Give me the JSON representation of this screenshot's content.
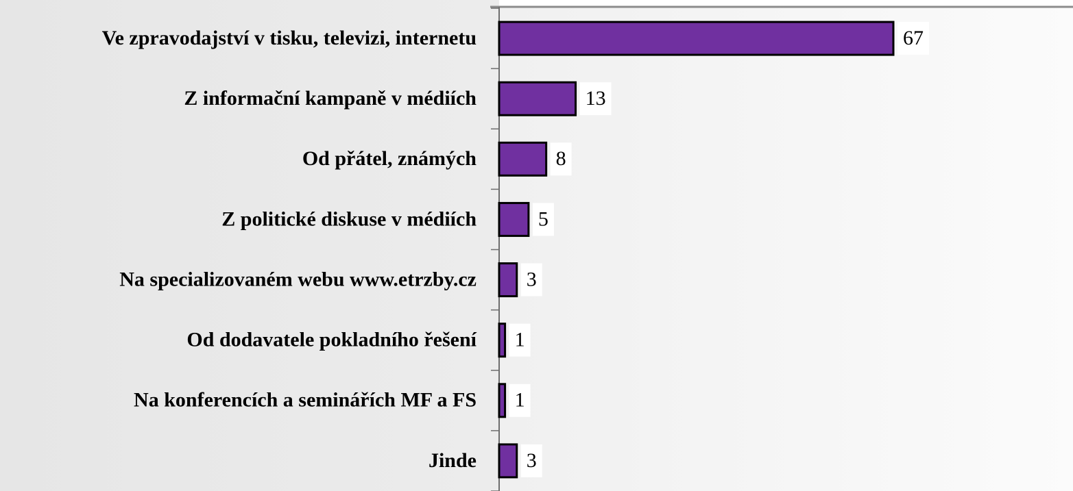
{
  "chart_data": {
    "type": "bar",
    "orientation": "horizontal",
    "categories": [
      "Ve zpravodajství v tisku, televizi, internetu",
      "Z informační kampaně v médiích",
      "Od přátel, známých",
      "Z politické diskuse v médiích",
      "Na specializovaném webu www.etrzby.cz",
      "Od dodavatele pokladního řešení",
      "Na konferencích a seminářích MF a FS",
      "Jinde"
    ],
    "values": [
      67,
      13,
      8,
      5,
      3,
      1,
      1,
      3
    ],
    "color": "#7030a0"
  }
}
